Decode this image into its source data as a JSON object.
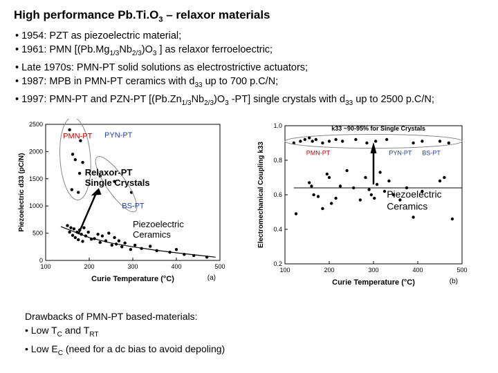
{
  "title": {
    "main": "High performance Pb.Ti.O",
    "sub": "3",
    "rest": " – relaxor materials"
  },
  "bullets": [
    [
      "• 1954: PZT as piezoelectric material;"
    ],
    [
      "• 1961: PMN  [(Pb.Mg",
      "1/3",
      "Nb",
      "2/3",
      ")O",
      "3",
      " ] as relaxor ferroeloectric;"
    ],
    [
      "• Late 1970s: PMN-PT solid solutions as electrostrictive actuators;"
    ],
    [
      "• 1987: MPB in PMN-PT ceramics with d",
      "33",
      " up to 700 p.C/N;"
    ],
    [
      "• 1997: PMN-PT and PZN-PT [(Pb.Zn",
      "1/3",
      "Nb",
      "2/3",
      ")O",
      "3",
      " -PT] single crystals with d",
      "33",
      " up to 2500 p.C/N;"
    ]
  ],
  "drawbacks": {
    "heading": "Drawbacks of PMN-PT based-materials:",
    "line1": [
      "• Low T",
      "C",
      " and T",
      "RT"
    ],
    "line2": [
      "• Low E",
      "C",
      " (need for a dc bias to avoid depoling)"
    ]
  },
  "colors": {
    "red_label": "#cc0000",
    "blue_label": "#2244aa",
    "marker": "#000000",
    "ellipse": "#888888"
  },
  "chart_data": [
    {
      "type": "scatter",
      "panel_label": "(a)",
      "xlabel": "Curie Temperature (°C)",
      "ylabel": "Piezoelectric d33 (pC/N)",
      "xlim": [
        100,
        500
      ],
      "ylim": [
        0,
        2500
      ],
      "xticks": [
        100,
        200,
        300,
        400,
        500
      ],
      "yticks": [
        0,
        500,
        1000,
        1500,
        2000,
        2500
      ],
      "annotations": {
        "pmn": "PMN-PT",
        "pyn": "PYN-PT",
        "bs": "BS-PT",
        "relaxor1": "Relaxor-PT",
        "relaxor2": "Single Crystals",
        "piezo1": "Piezoelectric",
        "piezo2": "Ceramics"
      },
      "series": [
        {
          "x": [
            155,
            162,
            168,
            180,
            185,
            178,
            160,
            175,
            225,
            258,
            297
          ],
          "y": [
            2400,
            1950,
            1850,
            2200,
            1800,
            1600,
            1300,
            1250,
            1550,
            1450,
            1250
          ]
        },
        {
          "x": [
            150,
            155,
            158,
            162,
            165,
            168,
            172,
            175,
            178,
            182,
            185,
            188,
            192,
            198,
            205,
            212,
            220,
            225,
            230,
            238,
            245,
            252,
            258,
            262,
            268,
            275,
            282,
            295,
            305,
            320,
            340,
            355,
            385,
            400,
            418,
            440,
            470
          ],
          "y": [
            640,
            520,
            600,
            460,
            580,
            420,
            520,
            380,
            560,
            480,
            350,
            600,
            450,
            520,
            390,
            400,
            480,
            330,
            450,
            360,
            500,
            280,
            420,
            300,
            360,
            250,
            320,
            200,
            280,
            220,
            260,
            180,
            150,
            200,
            110,
            90,
            60
          ]
        }
      ],
      "trend_line": {
        "x": [
          135,
          200,
          250,
          300,
          350,
          400,
          450,
          490
        ],
        "y": [
          620,
          420,
          320,
          250,
          190,
          140,
          95,
          60
        ]
      }
    },
    {
      "type": "scatter",
      "panel_label": "(b)",
      "xlabel": "Curie Temperature (°C)",
      "ylabel": "Electromechanical Coupling k33",
      "xlim": [
        100,
        500
      ],
      "ylim": [
        0.2,
        1.0
      ],
      "xticks": [
        100,
        200,
        300,
        400,
        500
      ],
      "yticks": [
        0.2,
        0.4,
        0.6,
        0.8,
        1.0
      ],
      "annotations": {
        "top_note": "k33 ~90-95% for Single Crystals",
        "pmn": "PMN-PT",
        "pyn": "PYN-PT",
        "bs": "BS-PT",
        "piezo1": "Piezoelectric",
        "piezo2": "Ceramics"
      },
      "series": [
        {
          "x": [
            120,
            135,
            145,
            155,
            162,
            170,
            185,
            200,
            215,
            230,
            260,
            285,
            305,
            330,
            390,
            410,
            450,
            470
          ],
          "y": [
            0.9,
            0.91,
            0.92,
            0.93,
            0.91,
            0.92,
            0.9,
            0.91,
            0.92,
            0.91,
            0.92,
            0.9,
            0.91,
            0.92,
            0.9,
            0.91,
            0.91,
            0.9
          ]
        },
        {
          "x": [
            125,
            155,
            160,
            165,
            175,
            185,
            195,
            200,
            205,
            215,
            225,
            240,
            255,
            270,
            282,
            290,
            295,
            302,
            308,
            315,
            325,
            335,
            345,
            360,
            375,
            390,
            410,
            450,
            460,
            478
          ],
          "y": [
            0.49,
            0.67,
            0.65,
            0.6,
            0.59,
            0.52,
            0.72,
            0.7,
            0.55,
            0.58,
            0.65,
            0.74,
            0.64,
            0.57,
            0.7,
            0.63,
            0.6,
            0.58,
            0.66,
            0.73,
            0.62,
            0.68,
            0.6,
            0.57,
            0.64,
            0.47,
            0.62,
            0.68,
            0.7,
            0.46
          ]
        }
      ],
      "reference_line": {
        "y": 0.64
      }
    }
  ]
}
